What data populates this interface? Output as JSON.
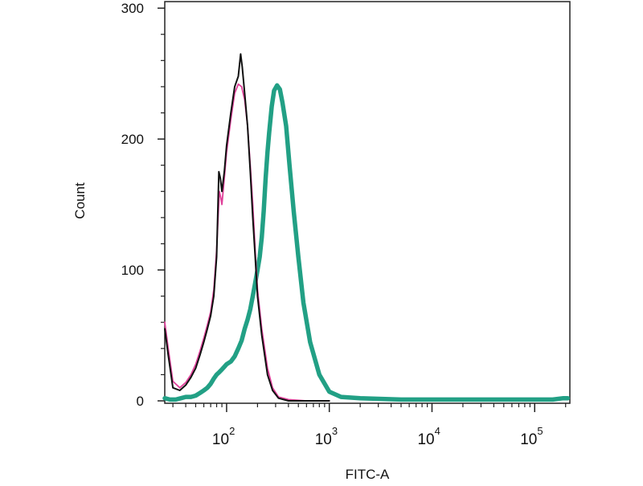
{
  "chart_data": {
    "type": "line",
    "title": "",
    "xlabel": "FITC-A",
    "ylabel": "Count",
    "x_scale": "log",
    "xlim": [
      25,
      220000
    ],
    "ylim": [
      0,
      305
    ],
    "grid": false,
    "legend": "none",
    "y_ticks": [
      {
        "value": 0,
        "label": "0"
      },
      {
        "value": 100,
        "label": "100"
      },
      {
        "value": 200,
        "label": "200"
      },
      {
        "value": 300,
        "label": "300"
      }
    ],
    "x_ticks": [
      {
        "value": 100,
        "base": "10",
        "exp": "2"
      },
      {
        "value": 1000,
        "base": "10",
        "exp": "3"
      },
      {
        "value": 10000,
        "base": "10",
        "exp": "4"
      },
      {
        "value": 100000,
        "base": "10",
        "exp": "5"
      }
    ],
    "series": [
      {
        "color": "#22a085",
        "points": [
          [
            25,
            2
          ],
          [
            28,
            1
          ],
          [
            32,
            1
          ],
          [
            36,
            2
          ],
          [
            40,
            3
          ],
          [
            45,
            3
          ],
          [
            50,
            4
          ],
          [
            55,
            6
          ],
          [
            60,
            8
          ],
          [
            65,
            10
          ],
          [
            70,
            13
          ],
          [
            75,
            17
          ],
          [
            80,
            20
          ],
          [
            85,
            22
          ],
          [
            90,
            24
          ],
          [
            95,
            26
          ],
          [
            100,
            28
          ],
          [
            110,
            30
          ],
          [
            120,
            34
          ],
          [
            130,
            40
          ],
          [
            140,
            46
          ],
          [
            150,
            55
          ],
          [
            160,
            62
          ],
          [
            170,
            70
          ],
          [
            180,
            80
          ],
          [
            190,
            90
          ],
          [
            200,
            100
          ],
          [
            210,
            110
          ],
          [
            220,
            125
          ],
          [
            230,
            145
          ],
          [
            240,
            170
          ],
          [
            250,
            190
          ],
          [
            260,
            205
          ],
          [
            275,
            225
          ],
          [
            290,
            237
          ],
          [
            310,
            241
          ],
          [
            330,
            238
          ],
          [
            350,
            228
          ],
          [
            380,
            210
          ],
          [
            410,
            180
          ],
          [
            450,
            145
          ],
          [
            500,
            110
          ],
          [
            560,
            75
          ],
          [
            650,
            45
          ],
          [
            800,
            20
          ],
          [
            1000,
            7
          ],
          [
            1300,
            3
          ],
          [
            2000,
            2
          ],
          [
            5000,
            1
          ],
          [
            50000,
            1
          ],
          [
            150000,
            1
          ],
          [
            190000,
            2
          ],
          [
            210000,
            2
          ]
        ]
      },
      {
        "color": "#e0409a",
        "points": [
          [
            25,
            60
          ],
          [
            27,
            40
          ],
          [
            30,
            15
          ],
          [
            35,
            10
          ],
          [
            40,
            14
          ],
          [
            45,
            20
          ],
          [
            50,
            28
          ],
          [
            55,
            38
          ],
          [
            60,
            48
          ],
          [
            65,
            58
          ],
          [
            70,
            68
          ],
          [
            75,
            85
          ],
          [
            80,
            115
          ],
          [
            85,
            160
          ],
          [
            88,
            155
          ],
          [
            90,
            150
          ],
          [
            95,
            170
          ],
          [
            100,
            190
          ],
          [
            110,
            215
          ],
          [
            120,
            235
          ],
          [
            130,
            242
          ],
          [
            140,
            240
          ],
          [
            150,
            230
          ],
          [
            160,
            210
          ],
          [
            170,
            180
          ],
          [
            180,
            150
          ],
          [
            190,
            115
          ],
          [
            200,
            85
          ],
          [
            220,
            55
          ],
          [
            250,
            25
          ],
          [
            280,
            10
          ],
          [
            320,
            3
          ],
          [
            400,
            1
          ],
          [
            600,
            0
          ],
          [
            1000,
            0
          ]
        ]
      },
      {
        "color": "#111111",
        "points": [
          [
            25,
            55
          ],
          [
            27,
            35
          ],
          [
            30,
            10
          ],
          [
            35,
            8
          ],
          [
            40,
            12
          ],
          [
            45,
            18
          ],
          [
            50,
            25
          ],
          [
            55,
            35
          ],
          [
            60,
            45
          ],
          [
            65,
            55
          ],
          [
            70,
            65
          ],
          [
            75,
            80
          ],
          [
            80,
            110
          ],
          [
            84,
            175
          ],
          [
            87,
            170
          ],
          [
            90,
            160
          ],
          [
            95,
            175
          ],
          [
            100,
            195
          ],
          [
            110,
            220
          ],
          [
            120,
            240
          ],
          [
            130,
            248
          ],
          [
            137,
            265
          ],
          [
            142,
            255
          ],
          [
            150,
            235
          ],
          [
            160,
            210
          ],
          [
            170,
            175
          ],
          [
            180,
            140
          ],
          [
            190,
            110
          ],
          [
            200,
            80
          ],
          [
            220,
            50
          ],
          [
            250,
            20
          ],
          [
            280,
            8
          ],
          [
            320,
            2
          ],
          [
            400,
            0
          ],
          [
            600,
            0
          ],
          [
            1000,
            0
          ]
        ]
      }
    ]
  }
}
